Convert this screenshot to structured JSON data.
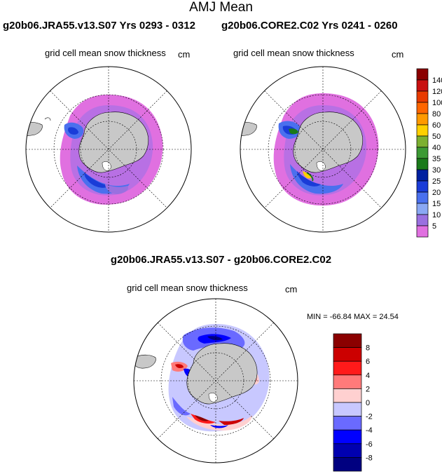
{
  "title": "AMJ Mean",
  "panels": [
    {
      "run_title": "g20b06.JRA55.v13.S07  Yrs 0293 - 0312",
      "subtitle": "grid cell mean snow thickness",
      "units": "cm"
    },
    {
      "run_title": "g20b06.CORE2.C02  Yrs 0241 - 0260",
      "subtitle": "grid cell mean snow thickness",
      "units": "cm"
    }
  ],
  "diff_panel": {
    "title": "g20b06.JRA55.v13.S07 - g20b06.CORE2.C02",
    "subtitle": "grid cell mean snow thickness",
    "units": "cm",
    "min_label": "MIN =",
    "min": "-66.84",
    "max_label": "MAX =",
    "max": "24.54"
  },
  "colorbar_top": {
    "labels": [
      "140",
      "120",
      "100",
      "80",
      "60",
      "50",
      "40",
      "35",
      "30",
      "25",
      "20",
      "15",
      "10",
      "5"
    ],
    "colors": [
      "#8b0000",
      "#c81010",
      "#e83a00",
      "#ff6600",
      "#ff9a00",
      "#ffd000",
      "#7cb030",
      "#3c9a34",
      "#1a7a1a",
      "#0020a0",
      "#1a3cd8",
      "#4a70ee",
      "#8aa8f4",
      "#9a70e0",
      "#e070e0"
    ]
  },
  "colorbar_diff": {
    "labels": [
      "8",
      "6",
      "4",
      "2",
      "0",
      "-2",
      "-4",
      "-6",
      "-8"
    ],
    "colors": [
      "#8b0000",
      "#cc0000",
      "#ff1a1a",
      "#ff7a7a",
      "#ffd0d0",
      "#c8c8ff",
      "#6a6aff",
      "#0000ff",
      "#0000b0",
      "#000080"
    ]
  },
  "map_colors": {
    "land": "#c8c8c8",
    "ocean": "#ffffff",
    "grid": "#000000"
  }
}
